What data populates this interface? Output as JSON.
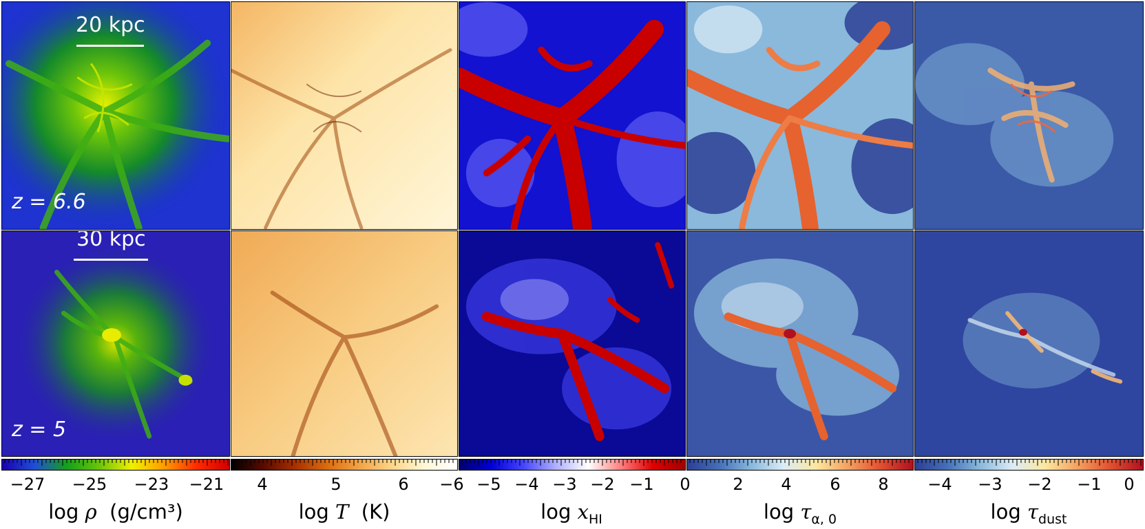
{
  "rows": [
    {
      "redshift_label": "z = 6.6",
      "scale_label": "20 kpc"
    },
    {
      "redshift_label": "z = 5",
      "scale_label": "30 kpc"
    }
  ],
  "columns": [
    {
      "quantity": "density",
      "label_symbol": "ρ",
      "label_unit": "(g/cm³)",
      "colormap": [
        "#1a00b0",
        "#1f4fd6",
        "#14a01a",
        "#6cc40a",
        "#f0f000",
        "#ff9a00",
        "#ff2a00",
        "#d00000"
      ],
      "ticks": [
        "−27",
        "−25",
        "−23",
        "−21"
      ]
    },
    {
      "quantity": "temperature",
      "label_symbol": "T",
      "label_unit": "(K)",
      "colormap": [
        "#000000",
        "#5a0a00",
        "#a83200",
        "#db6e10",
        "#f2a548",
        "#fcd68a",
        "#fff7d6",
        "#ffffff"
      ],
      "ticks": [
        "4",
        "5",
        "6"
      ]
    },
    {
      "quantity": "neutral-fraction",
      "label_symbol": "x",
      "label_sub": "HI",
      "colormap": [
        "#00006e",
        "#0000d8",
        "#4646ff",
        "#b0b0ff",
        "#ffffff",
        "#ff8080",
        "#e00000",
        "#a00000"
      ],
      "ticks": [
        "−6",
        "−5",
        "−4",
        "−3",
        "−2",
        "−1",
        "0"
      ]
    },
    {
      "quantity": "lya-optical-depth",
      "label_symbol": "τ",
      "label_sub": "α, 0",
      "colormap": [
        "#2c3f95",
        "#4570b8",
        "#8ab9dc",
        "#dcecf5",
        "#fbe7a0",
        "#f4a060",
        "#e05030",
        "#b01020"
      ],
      "ticks": [
        "0",
        "2",
        "4",
        "6",
        "8"
      ]
    },
    {
      "quantity": "dust-optical-depth",
      "label_symbol": "τ",
      "label_sub": "dust",
      "colormap": [
        "#2c3f95",
        "#4570b8",
        "#8ab9dc",
        "#dcecf5",
        "#fbe7a0",
        "#f4a060",
        "#e05030",
        "#b01020"
      ],
      "ticks": [
        "−4",
        "−3",
        "−2",
        "−1",
        "0"
      ]
    }
  ],
  "common": {
    "log_word": "log"
  }
}
